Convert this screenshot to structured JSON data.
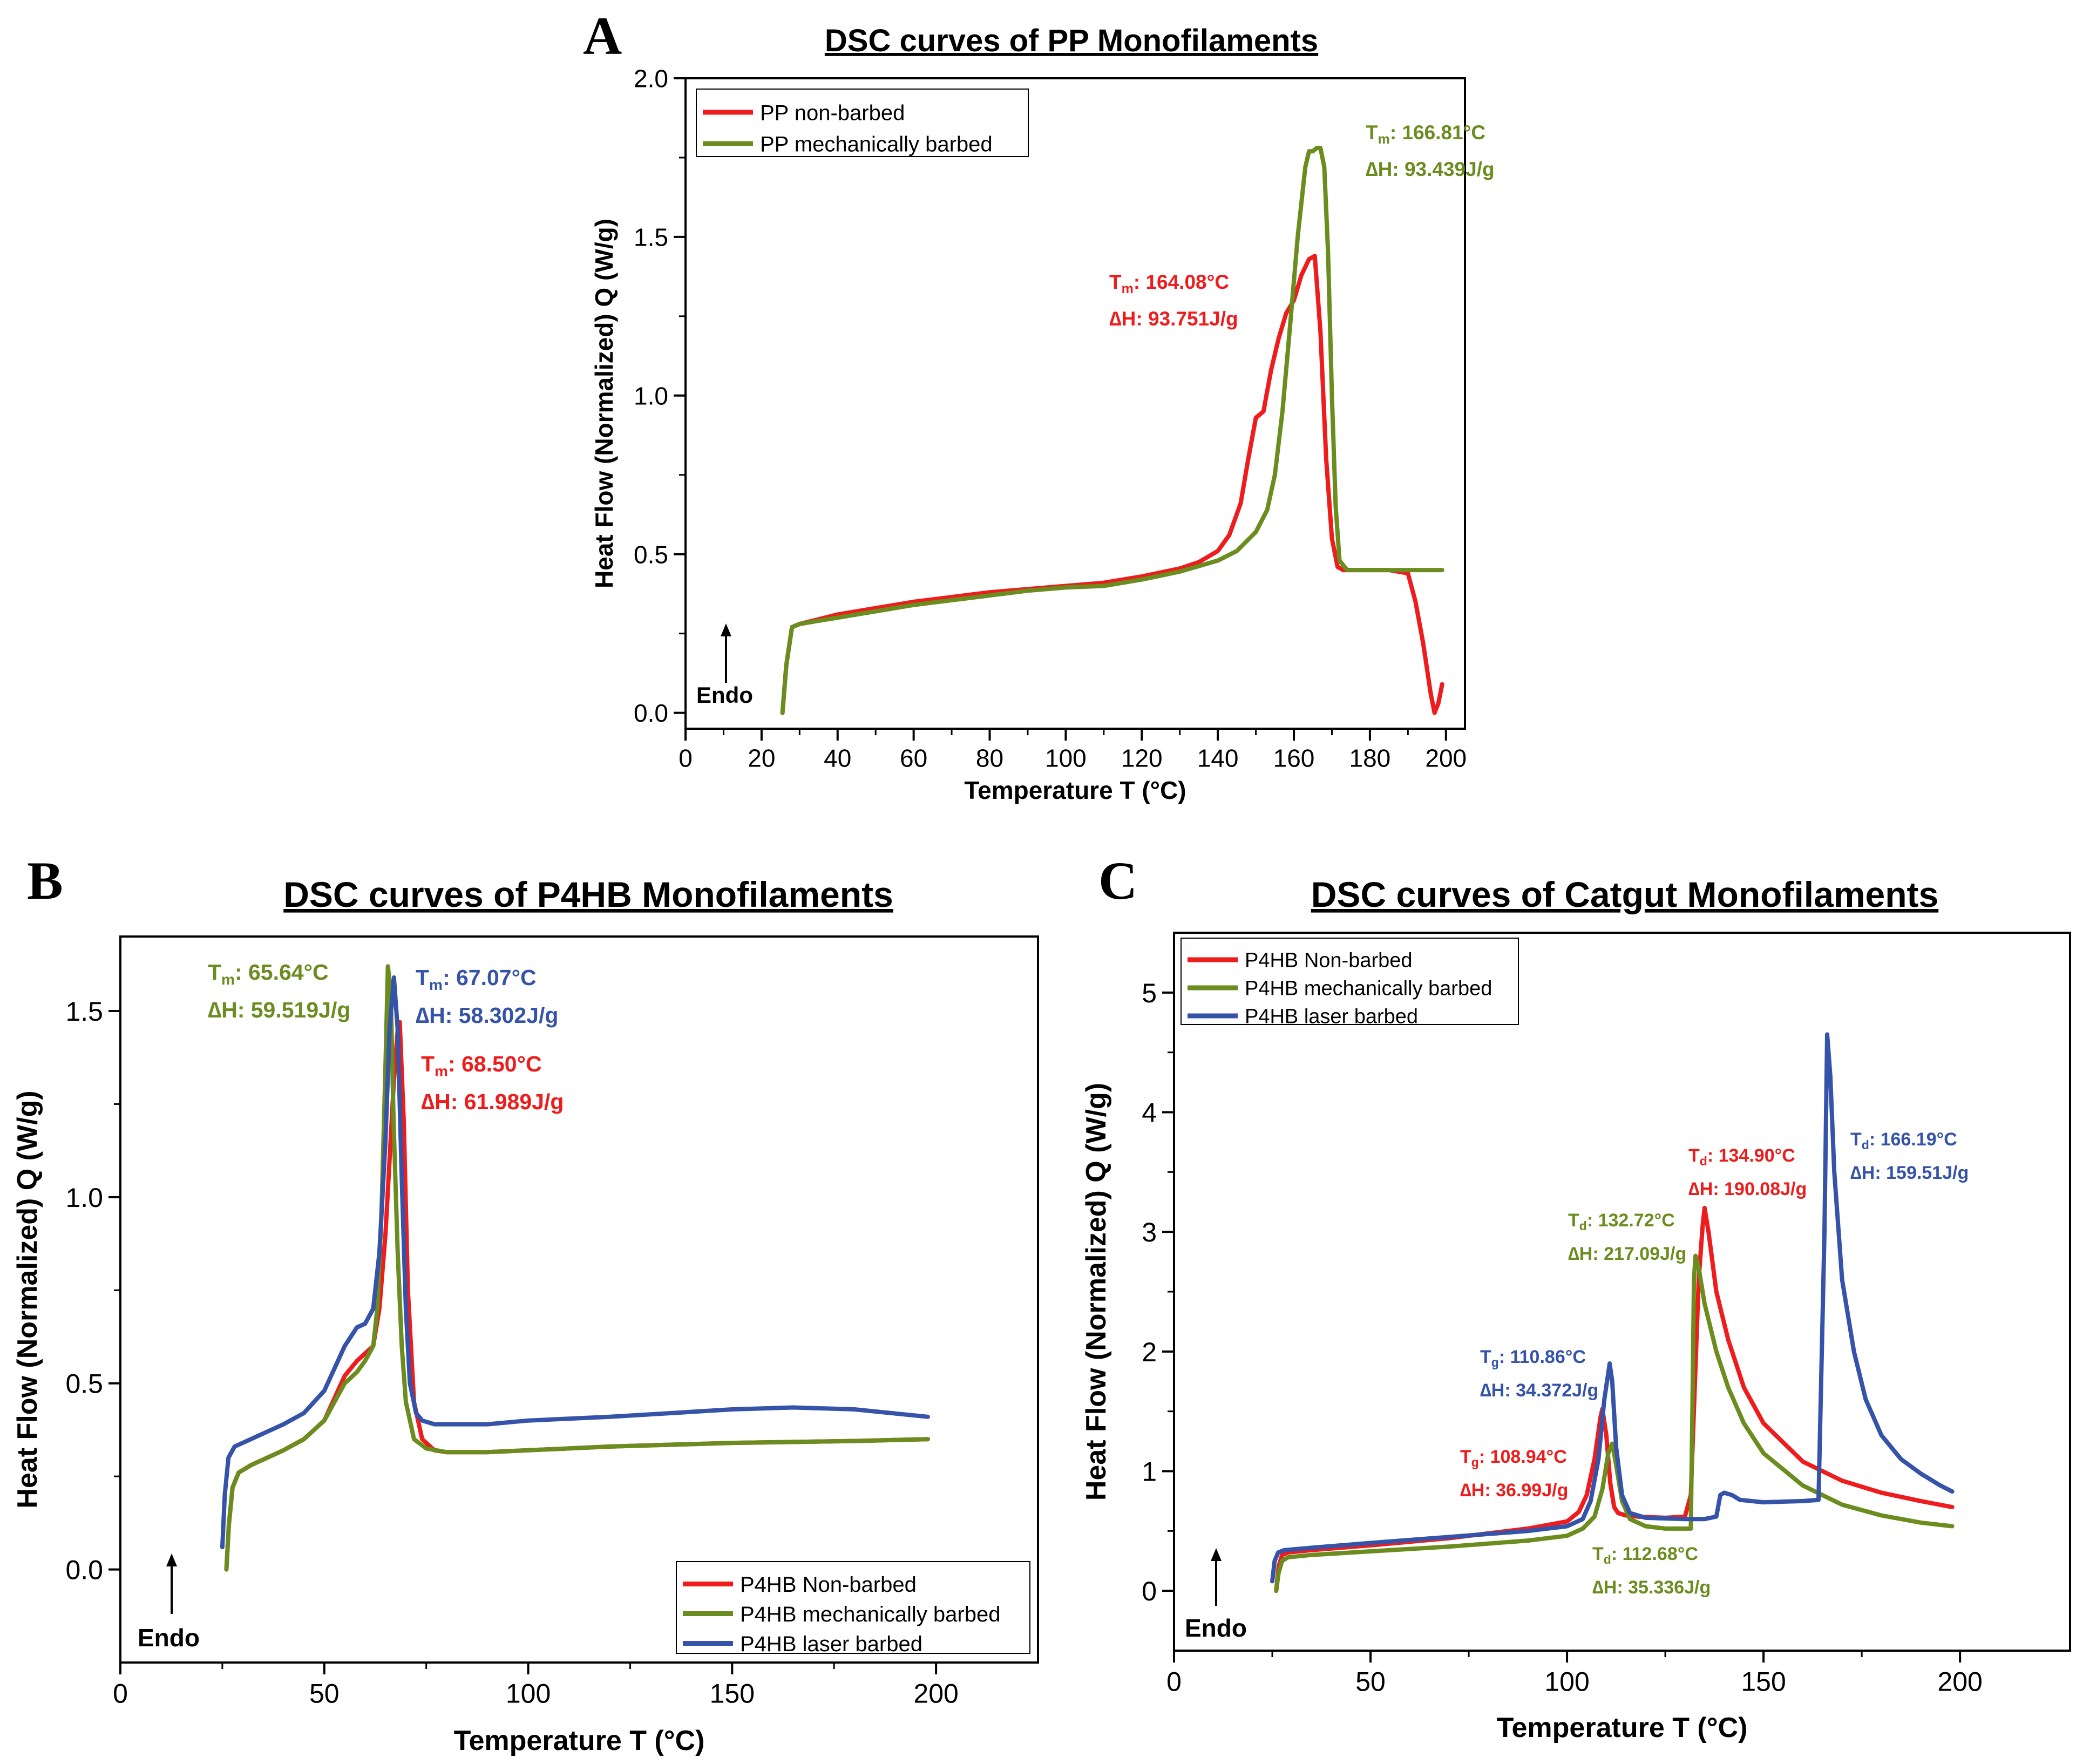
{
  "figure": {
    "endo_label": "Endo"
  },
  "chart_data": [
    {
      "id": "A",
      "panel_letter": "A",
      "type": "line",
      "title": "DSC curves of PP Monofilaments",
      "xlabel": "Temperature T (°C)",
      "ylabel": "Heat Flow (Normalized) Q (W/g)",
      "xlim": [
        0,
        205
      ],
      "ylim": [
        -0.05,
        2.0
      ],
      "xticks": [
        0,
        20,
        40,
        60,
        80,
        100,
        120,
        140,
        160,
        180,
        200
      ],
      "yticks": [
        0.0,
        0.5,
        1.0,
        1.5,
        2.0
      ],
      "ytick_decimals": 1,
      "legend_position": "top-left",
      "series": [
        {
          "name": "PP non-barbed",
          "color": "#ee1c1c",
          "x": [
            25.5,
            26.5,
            28,
            30,
            35,
            40,
            50,
            60,
            70,
            80,
            90,
            100,
            110,
            120,
            130,
            135,
            140,
            143,
            146,
            148,
            150,
            152,
            154,
            156,
            158,
            160,
            162,
            164,
            165.5,
            167,
            168.5,
            170,
            171.5,
            173,
            176,
            180,
            185,
            190,
            192,
            194,
            196,
            197,
            198,
            199
          ],
          "y": [
            0.0,
            0.15,
            0.27,
            0.28,
            0.295,
            0.31,
            0.33,
            0.35,
            0.365,
            0.38,
            0.39,
            0.4,
            0.41,
            0.43,
            0.455,
            0.475,
            0.51,
            0.56,
            0.66,
            0.8,
            0.93,
            0.95,
            1.08,
            1.18,
            1.26,
            1.3,
            1.38,
            1.43,
            1.44,
            1.2,
            0.8,
            0.55,
            0.46,
            0.45,
            0.45,
            0.45,
            0.45,
            0.44,
            0.35,
            0.22,
            0.06,
            0.0,
            0.03,
            0.09
          ]
        },
        {
          "name": "PP mechanically barbed",
          "color": "#6b8c1e",
          "x": [
            25.5,
            26.5,
            28,
            30,
            35,
            40,
            50,
            60,
            70,
            80,
            90,
            100,
            110,
            120,
            130,
            140,
            145,
            150,
            153,
            155,
            157,
            159,
            161,
            163,
            164,
            165,
            166,
            167,
            168,
            169,
            170,
            171,
            172,
            174,
            180,
            190,
            199
          ],
          "y": [
            0.0,
            0.15,
            0.27,
            0.28,
            0.29,
            0.3,
            0.32,
            0.34,
            0.355,
            0.37,
            0.385,
            0.395,
            0.4,
            0.42,
            0.445,
            0.48,
            0.51,
            0.57,
            0.64,
            0.75,
            0.95,
            1.22,
            1.5,
            1.72,
            1.77,
            1.77,
            1.78,
            1.78,
            1.72,
            1.45,
            1.0,
            0.65,
            0.48,
            0.45,
            0.45,
            0.45,
            0.45
          ]
        }
      ],
      "annotations": [
        {
          "color": "#6b8c1e",
          "symbol": "T",
          "sub": "m",
          "temp": ": 166.81°C",
          "dh": "∆H:  93.439J/g"
        },
        {
          "color": "#ee1c1c",
          "symbol": "T",
          "sub": "m",
          "temp": ": 164.08°C",
          "dh": "∆H:  93.751J/g"
        }
      ]
    },
    {
      "id": "B",
      "panel_letter": "B",
      "type": "line",
      "title": "DSC curves of P4HB Monofilaments",
      "xlabel": "Temperature T (°C)",
      "ylabel": "Heat Flow (Normalized) Q (W/g)",
      "xlim": [
        0,
        225
      ],
      "ylim": [
        -0.25,
        1.7
      ],
      "xticks": [
        0,
        50,
        100,
        150,
        200
      ],
      "yticks": [
        0.0,
        0.5,
        1.0,
        1.5
      ],
      "ytick_decimals": 1,
      "legend_position": "bottom-right",
      "series": [
        {
          "name": "P4HB Non-barbed",
          "color": "#ee1c1c",
          "x": [
            26,
            26.6,
            27.5,
            29,
            32,
            36,
            40,
            45,
            50,
            55,
            58,
            60,
            62,
            63.5,
            65,
            66,
            67,
            68,
            68.5,
            69.5,
            70.5,
            72,
            74,
            77,
            80,
            90,
            100,
            120,
            150,
            180,
            198
          ],
          "y": [
            0.0,
            0.12,
            0.22,
            0.26,
            0.28,
            0.3,
            0.32,
            0.35,
            0.4,
            0.52,
            0.56,
            0.58,
            0.6,
            0.7,
            0.9,
            1.1,
            1.3,
            1.45,
            1.47,
            1.2,
            0.75,
            0.45,
            0.35,
            0.32,
            0.315,
            0.315,
            0.32,
            0.33,
            0.34,
            0.345,
            0.35
          ]
        },
        {
          "name": "P4HB mechanically barbed",
          "color": "#6b8c1e",
          "x": [
            26,
            26.6,
            27.5,
            29,
            32,
            36,
            40,
            45,
            50,
            55,
            58,
            60,
            62,
            63,
            64,
            65,
            65.6,
            66.3,
            67,
            68,
            69,
            70,
            72,
            75,
            80,
            90,
            100,
            120,
            150,
            180,
            198
          ],
          "y": [
            0.0,
            0.12,
            0.22,
            0.26,
            0.28,
            0.3,
            0.32,
            0.35,
            0.4,
            0.5,
            0.53,
            0.56,
            0.6,
            0.7,
            0.95,
            1.35,
            1.62,
            1.55,
            1.2,
            0.85,
            0.6,
            0.45,
            0.35,
            0.325,
            0.315,
            0.315,
            0.32,
            0.33,
            0.34,
            0.345,
            0.35
          ]
        },
        {
          "name": "P4HB laser barbed",
          "color": "#3553a8",
          "x": [
            25,
            25.6,
            26.5,
            28,
            32,
            36,
            40,
            45,
            50,
            55,
            58,
            60,
            62,
            63.5,
            65,
            66,
            67.07,
            68,
            69,
            70,
            71,
            72.5,
            74,
            77,
            80,
            90,
            100,
            120,
            150,
            165,
            180,
            198
          ],
          "y": [
            0.06,
            0.2,
            0.3,
            0.33,
            0.35,
            0.37,
            0.39,
            0.42,
            0.48,
            0.6,
            0.65,
            0.66,
            0.7,
            0.85,
            1.15,
            1.45,
            1.59,
            1.45,
            1.05,
            0.7,
            0.5,
            0.42,
            0.4,
            0.39,
            0.39,
            0.39,
            0.4,
            0.41,
            0.43,
            0.435,
            0.43,
            0.41
          ]
        }
      ],
      "annotations": [
        {
          "color": "#6b8c1e",
          "symbol": "T",
          "sub": "m",
          "temp": ": 65.64°C",
          "dh": "∆H:  59.519J/g"
        },
        {
          "color": "#3553a8",
          "symbol": "T",
          "sub": "m",
          "temp": ": 67.07°C",
          "dh": "∆H:  58.302J/g"
        },
        {
          "color": "#ee1c1c",
          "symbol": "T",
          "sub": "m",
          "temp": ": 68.50°C",
          "dh": "∆H:  61.989J/g"
        }
      ]
    },
    {
      "id": "C",
      "panel_letter": "C",
      "type": "line",
      "title": "DSC curves of Catgut Monofilaments",
      "xlabel": "Temperature T (°C)",
      "ylabel": "Heat Flow (Normalized) Q (W/g)",
      "xlim": [
        0,
        228
      ],
      "ylim": [
        -0.5,
        5.5
      ],
      "xticks": [
        0,
        50,
        100,
        150,
        200
      ],
      "yticks": [
        0,
        1,
        2,
        3,
        4,
        5
      ],
      "ytick_decimals": 0,
      "legend_position": "top-left",
      "series": [
        {
          "name": "P4HB Non-barbed",
          "color": "#ee1c1c",
          "x": [
            26,
            26.6,
            27.5,
            29,
            35,
            50,
            70,
            90,
            100,
            103,
            105,
            107,
            108.5,
            109,
            110,
            111,
            112,
            113,
            115,
            118,
            125,
            130,
            131.5,
            132.5,
            133.5,
            134.5,
            135,
            136,
            138,
            141,
            145,
            150,
            160,
            170,
            180,
            190,
            198
          ],
          "y": [
            0.0,
            0.2,
            0.3,
            0.32,
            0.34,
            0.38,
            0.44,
            0.52,
            0.58,
            0.66,
            0.8,
            1.1,
            1.45,
            1.52,
            1.3,
            0.9,
            0.7,
            0.65,
            0.63,
            0.62,
            0.61,
            0.62,
            0.8,
            1.7,
            2.6,
            3.05,
            3.2,
            3.0,
            2.5,
            2.1,
            1.7,
            1.4,
            1.08,
            0.92,
            0.82,
            0.75,
            0.7
          ]
        },
        {
          "name": "P4HB mechanically barbed",
          "color": "#6b8c1e",
          "x": [
            26,
            26.6,
            27.5,
            29,
            35,
            50,
            70,
            90,
            100,
            104,
            107,
            109,
            110.5,
            111.5,
            112.5,
            114,
            116,
            120,
            125,
            130,
            131.5,
            131.9,
            132.3,
            132.7,
            133.5,
            135,
            138,
            141,
            145,
            150,
            160,
            170,
            180,
            190,
            198
          ],
          "y": [
            0.0,
            0.15,
            0.25,
            0.28,
            0.3,
            0.33,
            0.37,
            0.42,
            0.46,
            0.52,
            0.62,
            0.85,
            1.15,
            1.23,
            1.05,
            0.75,
            0.6,
            0.54,
            0.52,
            0.52,
            0.52,
            1.5,
            2.6,
            2.8,
            2.7,
            2.4,
            2.0,
            1.7,
            1.4,
            1.15,
            0.88,
            0.72,
            0.63,
            0.57,
            0.54
          ]
        },
        {
          "name": "P4HB laser barbed",
          "color": "#3553a8",
          "x": [
            25,
            25.6,
            26.5,
            28,
            35,
            50,
            70,
            90,
            100,
            104,
            106,
            108,
            109.5,
            110.86,
            111.5,
            112.5,
            114,
            116,
            120,
            130,
            135,
            138,
            139,
            140,
            142,
            144,
            150,
            160,
            164,
            165.5,
            166.19,
            167,
            168,
            170,
            173,
            176,
            180,
            185,
            190,
            195,
            198
          ],
          "y": [
            0.08,
            0.25,
            0.32,
            0.34,
            0.36,
            0.4,
            0.45,
            0.5,
            0.54,
            0.6,
            0.75,
            1.1,
            1.6,
            1.9,
            1.75,
            1.2,
            0.8,
            0.65,
            0.61,
            0.6,
            0.6,
            0.62,
            0.8,
            0.82,
            0.8,
            0.76,
            0.74,
            0.75,
            0.76,
            3.0,
            4.65,
            4.3,
            3.5,
            2.6,
            2.0,
            1.6,
            1.3,
            1.1,
            0.98,
            0.88,
            0.83
          ]
        }
      ],
      "annotations": [
        {
          "color": "#ee1c1c",
          "symbol": "T",
          "sub": "d",
          "temp": ": 134.90°C",
          "dh": "∆H:  190.08J/g"
        },
        {
          "color": "#3553a8",
          "symbol": "T",
          "sub": "d",
          "temp": ": 166.19°C",
          "dh": "∆H:  159.51J/g"
        },
        {
          "color": "#6b8c1e",
          "symbol": "T",
          "sub": "d",
          "temp": ": 132.72°C",
          "dh": "∆H:  217.09J/g"
        },
        {
          "color": "#3553a8",
          "symbol": "T",
          "sub": "g",
          "temp": ": 110.86°C",
          "dh": "∆H:  34.372J/g"
        },
        {
          "color": "#ee1c1c",
          "symbol": "T",
          "sub": "g",
          "temp": ": 108.94°C",
          "dh": "∆H:  36.99J/g"
        },
        {
          "color": "#6b8c1e",
          "symbol": "T",
          "sub": "d",
          "temp": ": 112.68°C",
          "dh": "∆H:  35.336J/g"
        }
      ]
    }
  ]
}
